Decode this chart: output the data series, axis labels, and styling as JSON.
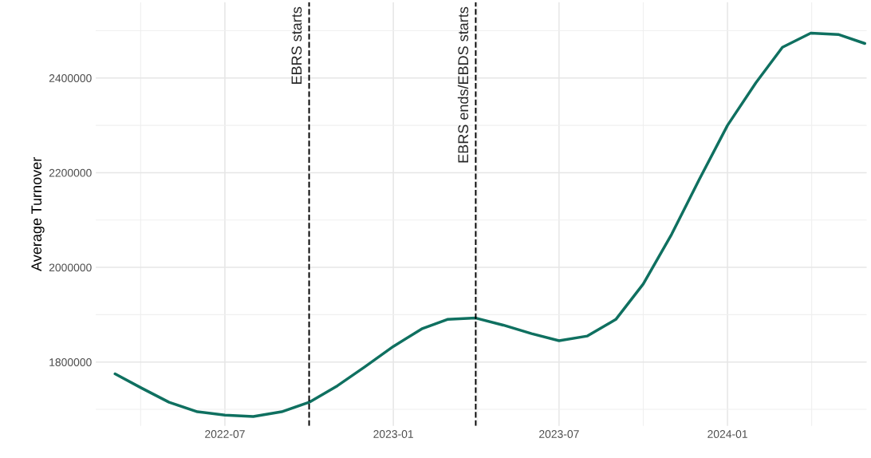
{
  "chart_data": {
    "type": "line",
    "ylabel": "Average Turnover",
    "x": [
      "2022-03-03",
      "2022-04-01",
      "2022-05-01",
      "2022-06-01",
      "2022-07-01",
      "2022-08-01",
      "2022-09-01",
      "2022-10-01",
      "2022-11-01",
      "2022-12-01",
      "2023-01-01",
      "2023-02-01",
      "2023-03-01",
      "2023-04-01",
      "2023-05-01",
      "2023-06-01",
      "2023-07-01",
      "2023-08-01",
      "2023-09-01",
      "2023-10-01",
      "2023-11-01",
      "2023-12-01",
      "2024-01-01",
      "2024-02-01",
      "2024-03-01",
      "2024-04-01",
      "2024-05-01",
      "2024-05-30"
    ],
    "series": [
      {
        "color": "#0f7060",
        "values": [
          1775000,
          1745000,
          1715000,
          1695000,
          1688000,
          1685000,
          1695000,
          1715000,
          1750000,
          1790000,
          1833000,
          1870000,
          1890000,
          1893000,
          1878000,
          1860000,
          1845000,
          1855000,
          1890000,
          1965000,
          2070000,
          2185000,
          2300000,
          2390000,
          2465000,
          2495000,
          2492000,
          2473000
        ]
      }
    ],
    "xlim": [
      "2022-02-10",
      "2024-06-01"
    ],
    "ylim": [
      1665000,
      2560000
    ],
    "xticks": [
      "2022-07",
      "2023-01",
      "2023-07",
      "2024-01"
    ],
    "yticks": [
      1800000,
      2000000,
      2200000,
      2400000
    ],
    "ref_lines": [
      {
        "axis": "x",
        "value": "2022-10-01",
        "label": "EBRS starts",
        "color": "#000000",
        "line_style": "dashed"
      },
      {
        "axis": "x",
        "value": "2023-04-01",
        "label": "EBRS ends/EBDS starts",
        "color": "#000000",
        "line_style": "dashed"
      }
    ],
    "grid": true,
    "legend": false,
    "marker": "none",
    "line_style": "solid"
  }
}
